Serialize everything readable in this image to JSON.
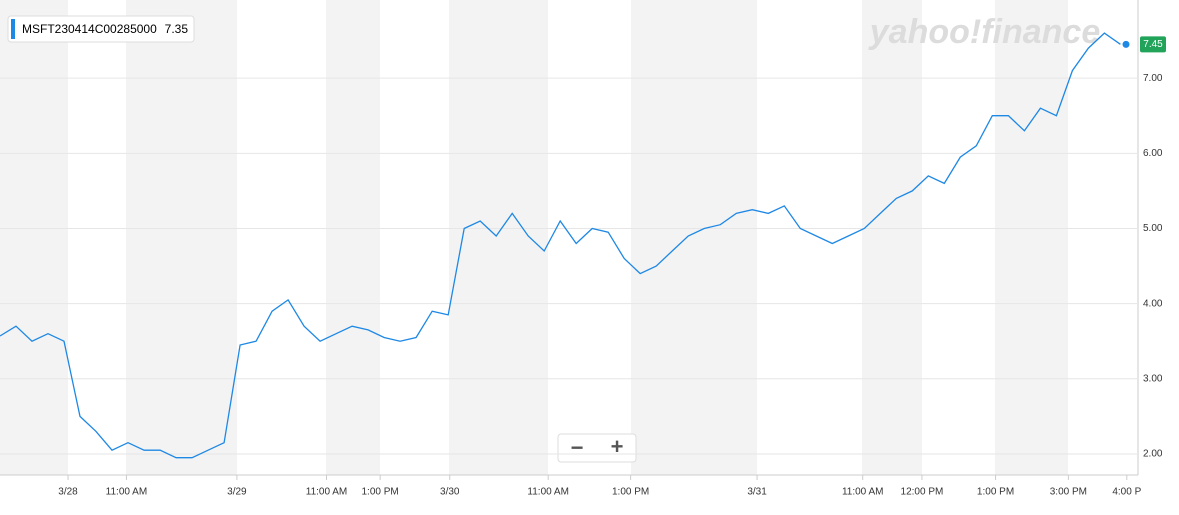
{
  "chart_data": {
    "type": "line",
    "watermark": "yahoo!finance",
    "legend_label": "MSFT230414C00285000",
    "legend_value": 7.35,
    "last_value": 7.45,
    "zoom_out": "−",
    "zoom_in": "+",
    "series": [
      {
        "name": "MSFT230414C00285000",
        "color": "#1e88e5",
        "values": [
          3.57,
          3.7,
          3.5,
          3.6,
          3.5,
          2.5,
          2.3,
          2.05,
          2.15,
          2.05,
          2.05,
          1.95,
          1.95,
          2.05,
          2.15,
          3.45,
          3.5,
          3.9,
          4.05,
          3.7,
          3.5,
          3.6,
          3.7,
          3.65,
          3.55,
          3.5,
          3.55,
          3.9,
          3.85,
          5.0,
          5.1,
          4.9,
          5.2,
          4.9,
          4.7,
          5.1,
          4.8,
          5.0,
          4.95,
          4.6,
          4.4,
          4.5,
          4.7,
          4.9,
          5.0,
          5.05,
          5.2,
          5.25,
          5.2,
          5.3,
          5.0,
          4.9,
          4.8,
          4.9,
          5.0,
          5.2,
          5.4,
          5.5,
          5.7,
          5.6,
          5.95,
          6.1,
          6.5,
          6.5,
          6.3,
          6.6,
          6.5,
          7.1,
          7.4,
          7.6,
          7.45
        ]
      }
    ],
    "xlim": [
      0,
      71.1
    ],
    "xticks": [
      {
        "value": 4.25,
        "label": "3/28"
      },
      {
        "value": 7.9,
        "label": "11:00 AM"
      },
      {
        "value": 14.8,
        "label": "3/29"
      },
      {
        "value": 20.4,
        "label": "11:00 AM"
      },
      {
        "value": 23.75,
        "label": "1:00 PM"
      },
      {
        "value": 28.1,
        "label": "3/30"
      },
      {
        "value": 34.25,
        "label": "11:00 AM"
      },
      {
        "value": 39.4,
        "label": "1:00 PM"
      },
      {
        "value": 47.3,
        "label": "3/31"
      },
      {
        "value": 53.9,
        "label": "11:00 AM"
      },
      {
        "value": 57.6,
        "label": "12:00 PM"
      },
      {
        "value": 62.2,
        "label": "1:00 PM"
      },
      {
        "value": 66.75,
        "label": "3:00 PM"
      },
      {
        "value": 70.4,
        "label": "4:00 P"
      }
    ],
    "ylim": [
      1.72,
      8.04
    ],
    "yticks": [
      {
        "value": 2,
        "label": "2.00"
      },
      {
        "value": 3,
        "label": "3.00"
      },
      {
        "value": 4,
        "label": "4.00"
      },
      {
        "value": 5,
        "label": "5.00"
      },
      {
        "value": 6,
        "label": "6.00"
      },
      {
        "value": 7,
        "label": "7.00"
      }
    ],
    "grid": true
  }
}
